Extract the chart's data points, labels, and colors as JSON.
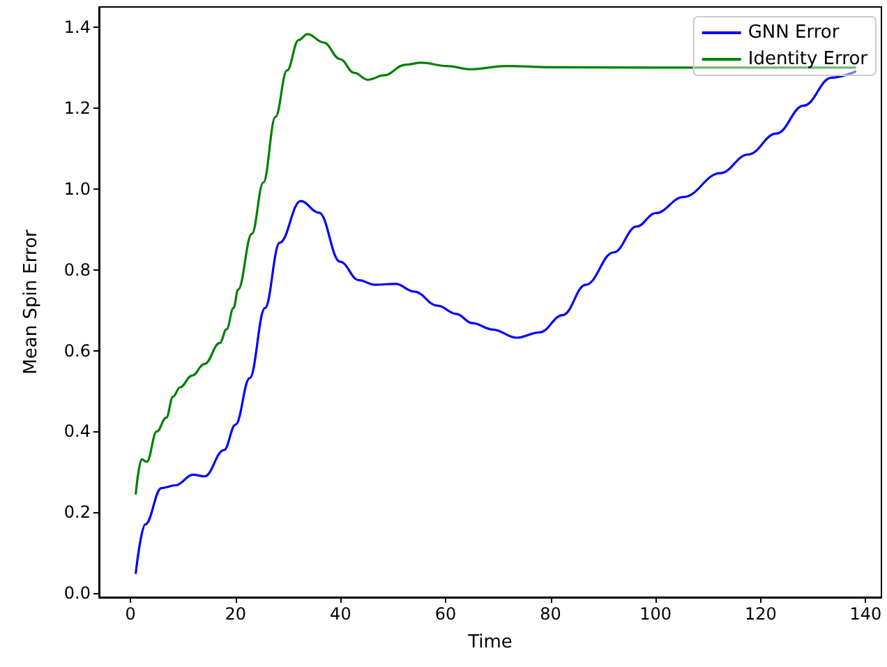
{
  "chart_data": {
    "type": "line",
    "xlabel": "Time",
    "ylabel": "Mean Spin Error",
    "xlim": [
      -6,
      143
    ],
    "xticks": [
      0,
      20,
      40,
      60,
      80,
      100,
      120,
      140
    ],
    "ylim": [
      -0.01,
      1.45
    ],
    "yticks": [
      {
        "value": 0,
        "label": "0.0"
      },
      {
        "value": 0.2,
        "label": "0.2"
      },
      {
        "value": 0.4,
        "label": "0.4"
      },
      {
        "value": 0.6,
        "label": "0.6"
      },
      {
        "value": 0.8,
        "label": "0.8"
      },
      {
        "value": 1.0,
        "label": "1.0"
      },
      {
        "value": 1.2,
        "label": "1.2"
      },
      {
        "value": 1.4,
        "label": "1.4"
      }
    ],
    "grid": false,
    "legend": "top right",
    "marker": "none",
    "line_style": "solid",
    "series": [
      {
        "name": "GNN Error",
        "color": "#0000ff",
        "x": [
          1,
          2.8,
          5.9,
          8.6,
          11.9,
          14.1,
          17.8,
          20,
          22.7,
          25.6,
          28.4,
          32.4,
          35.9,
          39.9,
          43.5,
          46.5,
          50.5,
          54,
          58.5,
          62,
          65.1,
          69,
          73.5,
          77.9,
          82.3,
          86.7,
          92,
          96.4,
          100,
          105.3,
          112.3,
          117.6,
          123,
          128.2,
          133.5,
          138
        ],
        "values": [
          0.05,
          0.17,
          0.26,
          0.267,
          0.293,
          0.289,
          0.354,
          0.417,
          0.532,
          0.705,
          0.867,
          0.97,
          0.941,
          0.82,
          0.774,
          0.763,
          0.765,
          0.746,
          0.711,
          0.691,
          0.668,
          0.652,
          0.632,
          0.645,
          0.688,
          0.763,
          0.843,
          0.907,
          0.94,
          0.98,
          1.039,
          1.085,
          1.137,
          1.206,
          1.275,
          1.29
        ]
      },
      {
        "name": "Identity Error",
        "color": "#008000",
        "x": [
          1,
          2.1,
          3.1,
          5,
          6.8,
          8.1,
          9.4,
          11.7,
          14.1,
          17,
          18.3,
          19.6,
          20.5,
          23.1,
          25.3,
          27.6,
          29.8,
          32,
          33.7,
          36.8,
          39.9,
          42.6,
          45.2,
          48.3,
          52.3,
          55.4,
          60.2,
          64.7,
          71.7,
          80,
          100,
          120,
          138
        ],
        "values": [
          0.246,
          0.331,
          0.325,
          0.4,
          0.434,
          0.486,
          0.509,
          0.538,
          0.567,
          0.619,
          0.653,
          0.705,
          0.751,
          0.889,
          1.016,
          1.178,
          1.293,
          1.368,
          1.383,
          1.362,
          1.321,
          1.287,
          1.27,
          1.281,
          1.307,
          1.312,
          1.304,
          1.296,
          1.304,
          1.301,
          1.3,
          1.3,
          1.3
        ]
      }
    ]
  }
}
